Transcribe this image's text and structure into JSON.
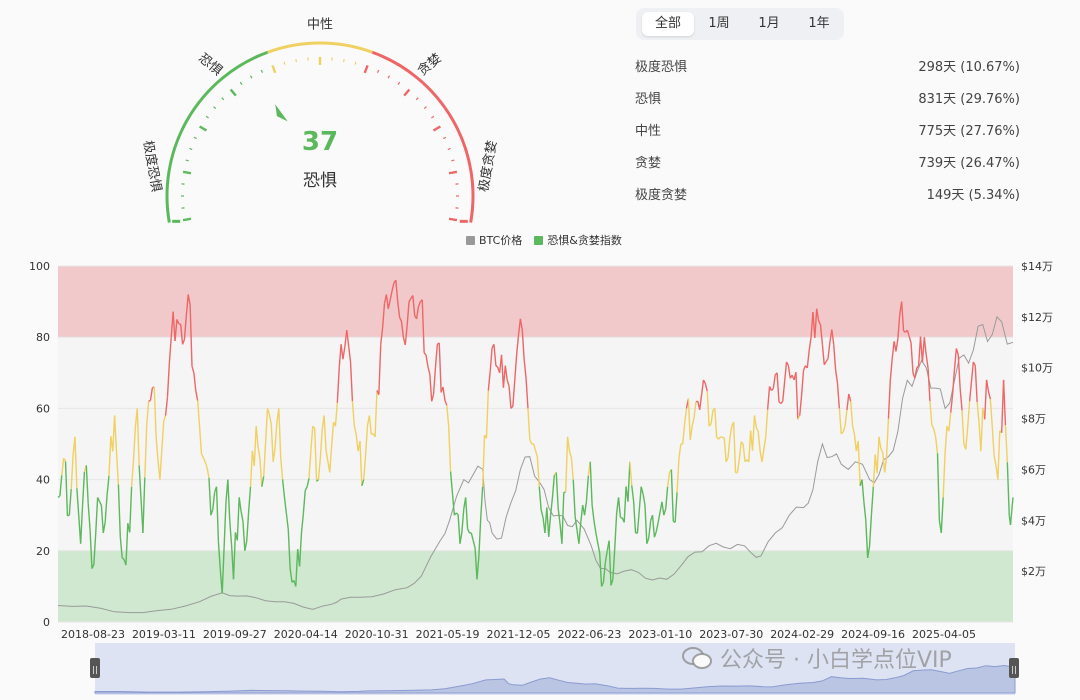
{
  "gauge": {
    "value": 37,
    "label": "恐惧",
    "zones": [
      "极度恐惧",
      "恐惧",
      "中性",
      "贪婪",
      "极度贪婪"
    ],
    "colors": {
      "fear": "#5cb85c",
      "neutral": "#f0d060",
      "greed": "#ee6666"
    }
  },
  "tabs": [
    "全部",
    "1周",
    "1月",
    "1年"
  ],
  "active_tab": "全部",
  "stats": [
    {
      "label": "极度恐惧",
      "value": "298天 (10.67%)"
    },
    {
      "label": "恐惧",
      "value": "831天 (29.76%)"
    },
    {
      "label": "中性",
      "value": "775天 (27.76%)"
    },
    {
      "label": "贪婪",
      "value": "739天 (26.47%)"
    },
    {
      "label": "极度贪婪",
      "value": "149天 (5.34%)"
    }
  ],
  "legend": {
    "btc": "BTC价格",
    "index": "恐惧&贪婪指数"
  },
  "watermark": "公众号 · 小白学点位VIP",
  "chart_data": {
    "type": "line",
    "x_ticks": [
      "2018-08-23",
      "2019-03-11",
      "2019-09-27",
      "2020-04-14",
      "2020-10-31",
      "2021-05-19",
      "2021-12-05",
      "2022-06-23",
      "2023-01-10",
      "2023-07-30",
      "2024-02-29",
      "2024-09-16",
      "2025-04-05"
    ],
    "y_left": {
      "ticks": [
        0,
        20,
        40,
        60,
        80,
        100
      ],
      "range": [
        0,
        100
      ]
    },
    "y_right": {
      "ticks": [
        "$2万",
        "$4万",
        "$6万",
        "$8万",
        "$10万",
        "$12万",
        "$14万"
      ],
      "range": [
        0,
        140000
      ]
    },
    "bands": [
      {
        "from": 0,
        "to": 20,
        "color": "#cfe8cf"
      },
      {
        "from": 80,
        "to": 100,
        "color": "#f2c9cb"
      }
    ],
    "thresholds": {
      "fear": 40,
      "neutral": 60,
      "greed": 80
    },
    "series": [
      {
        "name": "恐惧&贪婪指数",
        "axis": "left",
        "points": [
          [
            0,
            35
          ],
          [
            6,
            46
          ],
          [
            12,
            30
          ],
          [
            18,
            52
          ],
          [
            24,
            22
          ],
          [
            30,
            44
          ],
          [
            36,
            15
          ],
          [
            42,
            35
          ],
          [
            48,
            25
          ],
          [
            54,
            41
          ],
          [
            60,
            58
          ],
          [
            66,
            24
          ],
          [
            72,
            16
          ],
          [
            78,
            38
          ],
          [
            84,
            60
          ],
          [
            90,
            25
          ],
          [
            96,
            62
          ],
          [
            102,
            66
          ],
          [
            108,
            40
          ],
          [
            114,
            58
          ],
          [
            120,
            80
          ],
          [
            126,
            85
          ],
          [
            132,
            78
          ],
          [
            138,
            92
          ],
          [
            144,
            70
          ],
          [
            150,
            55
          ],
          [
            156,
            45
          ],
          [
            162,
            30
          ],
          [
            168,
            38
          ],
          [
            174,
            8
          ],
          [
            180,
            40
          ],
          [
            186,
            12
          ],
          [
            192,
            35
          ],
          [
            198,
            20
          ],
          [
            204,
            38
          ],
          [
            210,
            55
          ],
          [
            216,
            38
          ],
          [
            222,
            60
          ],
          [
            228,
            45
          ],
          [
            234,
            60
          ],
          [
            240,
            35
          ],
          [
            246,
            15
          ],
          [
            252,
            10
          ],
          [
            258,
            25
          ],
          [
            264,
            38
          ],
          [
            270,
            55
          ],
          [
            276,
            40
          ],
          [
            282,
            58
          ],
          [
            288,
            42
          ],
          [
            294,
            55
          ],
          [
            300,
            78
          ],
          [
            306,
            82
          ],
          [
            312,
            62
          ],
          [
            318,
            48
          ],
          [
            324,
            40
          ],
          [
            330,
            58
          ],
          [
            336,
            52
          ],
          [
            342,
            78
          ],
          [
            348,
            92
          ],
          [
            354,
            93
          ],
          [
            360,
            90
          ],
          [
            366,
            80
          ],
          [
            372,
            90
          ],
          [
            378,
            86
          ],
          [
            384,
            90
          ],
          [
            390,
            75
          ],
          [
            396,
            62
          ],
          [
            402,
            78
          ],
          [
            408,
            66
          ],
          [
            414,
            55
          ],
          [
            420,
            30
          ],
          [
            426,
            22
          ],
          [
            432,
            35
          ],
          [
            438,
            25
          ],
          [
            444,
            12
          ],
          [
            450,
            38
          ],
          [
            456,
            65
          ],
          [
            462,
            78
          ],
          [
            468,
            70
          ],
          [
            474,
            72
          ],
          [
            480,
            60
          ],
          [
            486,
            75
          ],
          [
            492,
            82
          ],
          [
            498,
            60
          ],
          [
            504,
            50
          ],
          [
            510,
            38
          ],
          [
            516,
            25
          ],
          [
            522,
            30
          ],
          [
            528,
            42
          ],
          [
            534,
            22
          ],
          [
            540,
            52
          ],
          [
            546,
            40
          ],
          [
            552,
            22
          ],
          [
            558,
            30
          ],
          [
            564,
            45
          ],
          [
            570,
            25
          ],
          [
            576,
            10
          ],
          [
            582,
            20
          ],
          [
            588,
            12
          ],
          [
            594,
            35
          ],
          [
            600,
            28
          ],
          [
            606,
            45
          ],
          [
            612,
            25
          ],
          [
            618,
            38
          ],
          [
            624,
            22
          ],
          [
            630,
            30
          ],
          [
            636,
            28
          ],
          [
            642,
            30
          ],
          [
            648,
            42
          ],
          [
            654,
            28
          ],
          [
            660,
            50
          ],
          [
            666,
            60
          ],
          [
            672,
            55
          ],
          [
            678,
            62
          ],
          [
            684,
            68
          ],
          [
            690,
            55
          ],
          [
            696,
            60
          ],
          [
            702,
            52
          ],
          [
            708,
            45
          ],
          [
            714,
            55
          ],
          [
            720,
            42
          ],
          [
            726,
            50
          ],
          [
            732,
            45
          ],
          [
            738,
            58
          ],
          [
            744,
            48
          ],
          [
            750,
            52
          ],
          [
            756,
            65
          ],
          [
            762,
            70
          ],
          [
            768,
            62
          ],
          [
            774,
            72
          ],
          [
            780,
            68
          ],
          [
            786,
            58
          ],
          [
            792,
            72
          ],
          [
            798,
            80
          ],
          [
            804,
            88
          ],
          [
            810,
            78
          ],
          [
            816,
            74
          ],
          [
            822,
            78
          ],
          [
            828,
            60
          ],
          [
            834,
            55
          ],
          [
            840,
            62
          ],
          [
            846,
            48
          ],
          [
            852,
            40
          ],
          [
            858,
            18
          ],
          [
            864,
            38
          ],
          [
            870,
            52
          ],
          [
            876,
            42
          ],
          [
            882,
            68
          ],
          [
            888,
            76
          ],
          [
            894,
            90
          ],
          [
            900,
            82
          ],
          [
            906,
            70
          ],
          [
            912,
            72
          ],
          [
            918,
            80
          ],
          [
            924,
            62
          ],
          [
            930,
            52
          ],
          [
            936,
            25
          ],
          [
            942,
            55
          ],
          [
            948,
            64
          ],
          [
            954,
            75
          ],
          [
            960,
            50
          ],
          [
            966,
            62
          ],
          [
            972,
            72
          ],
          [
            978,
            48
          ],
          [
            984,
            68
          ],
          [
            990,
            55
          ],
          [
            996,
            40
          ],
          [
            1002,
            68
          ],
          [
            1008,
            30
          ],
          [
            1012,
            35
          ]
        ]
      },
      {
        "name": "BTC价格",
        "axis": "right",
        "points": [
          [
            0,
            6500
          ],
          [
            30,
            6300
          ],
          [
            60,
            4000
          ],
          [
            90,
            3700
          ],
          [
            120,
            5000
          ],
          [
            150,
            8000
          ],
          [
            174,
            11500
          ],
          [
            190,
            10200
          ],
          [
            210,
            9500
          ],
          [
            230,
            8000
          ],
          [
            250,
            7300
          ],
          [
            270,
            5000
          ],
          [
            290,
            7000
          ],
          [
            300,
            9000
          ],
          [
            320,
            9700
          ],
          [
            345,
            11000
          ],
          [
            370,
            13500
          ],
          [
            385,
            18000
          ],
          [
            405,
            32000
          ],
          [
            415,
            40000
          ],
          [
            430,
            56000
          ],
          [
            440,
            58000
          ],
          [
            450,
            60000
          ],
          [
            455,
            40000
          ],
          [
            460,
            35000
          ],
          [
            470,
            33000
          ],
          [
            480,
            47000
          ],
          [
            490,
            60000
          ],
          [
            500,
            65000
          ],
          [
            510,
            55000
          ],
          [
            520,
            45000
          ],
          [
            530,
            42000
          ],
          [
            540,
            38000
          ],
          [
            550,
            40000
          ],
          [
            565,
            30000
          ],
          [
            575,
            21000
          ],
          [
            585,
            19500
          ],
          [
            600,
            20000
          ],
          [
            615,
            19500
          ],
          [
            630,
            16500
          ],
          [
            645,
            16800
          ],
          [
            660,
            22000
          ],
          [
            675,
            27500
          ],
          [
            690,
            30000
          ],
          [
            705,
            29500
          ],
          [
            720,
            30500
          ],
          [
            735,
            27000
          ],
          [
            745,
            26000
          ],
          [
            760,
            35000
          ],
          [
            775,
            42000
          ],
          [
            790,
            45000
          ],
          [
            800,
            52000
          ],
          [
            810,
            70000
          ],
          [
            820,
            65000
          ],
          [
            830,
            62000
          ],
          [
            845,
            63000
          ],
          [
            860,
            56000
          ],
          [
            870,
            58000
          ],
          [
            880,
            65000
          ],
          [
            890,
            75000
          ],
          [
            900,
            95000
          ],
          [
            910,
            98000
          ],
          [
            920,
            100000
          ],
          [
            930,
            92000
          ],
          [
            940,
            84000
          ],
          [
            950,
            95000
          ],
          [
            960,
            105000
          ],
          [
            970,
            107000
          ],
          [
            980,
            117000
          ],
          [
            990,
            113000
          ],
          [
            1000,
            118000
          ],
          [
            1012,
            110000
          ]
        ]
      }
    ]
  }
}
